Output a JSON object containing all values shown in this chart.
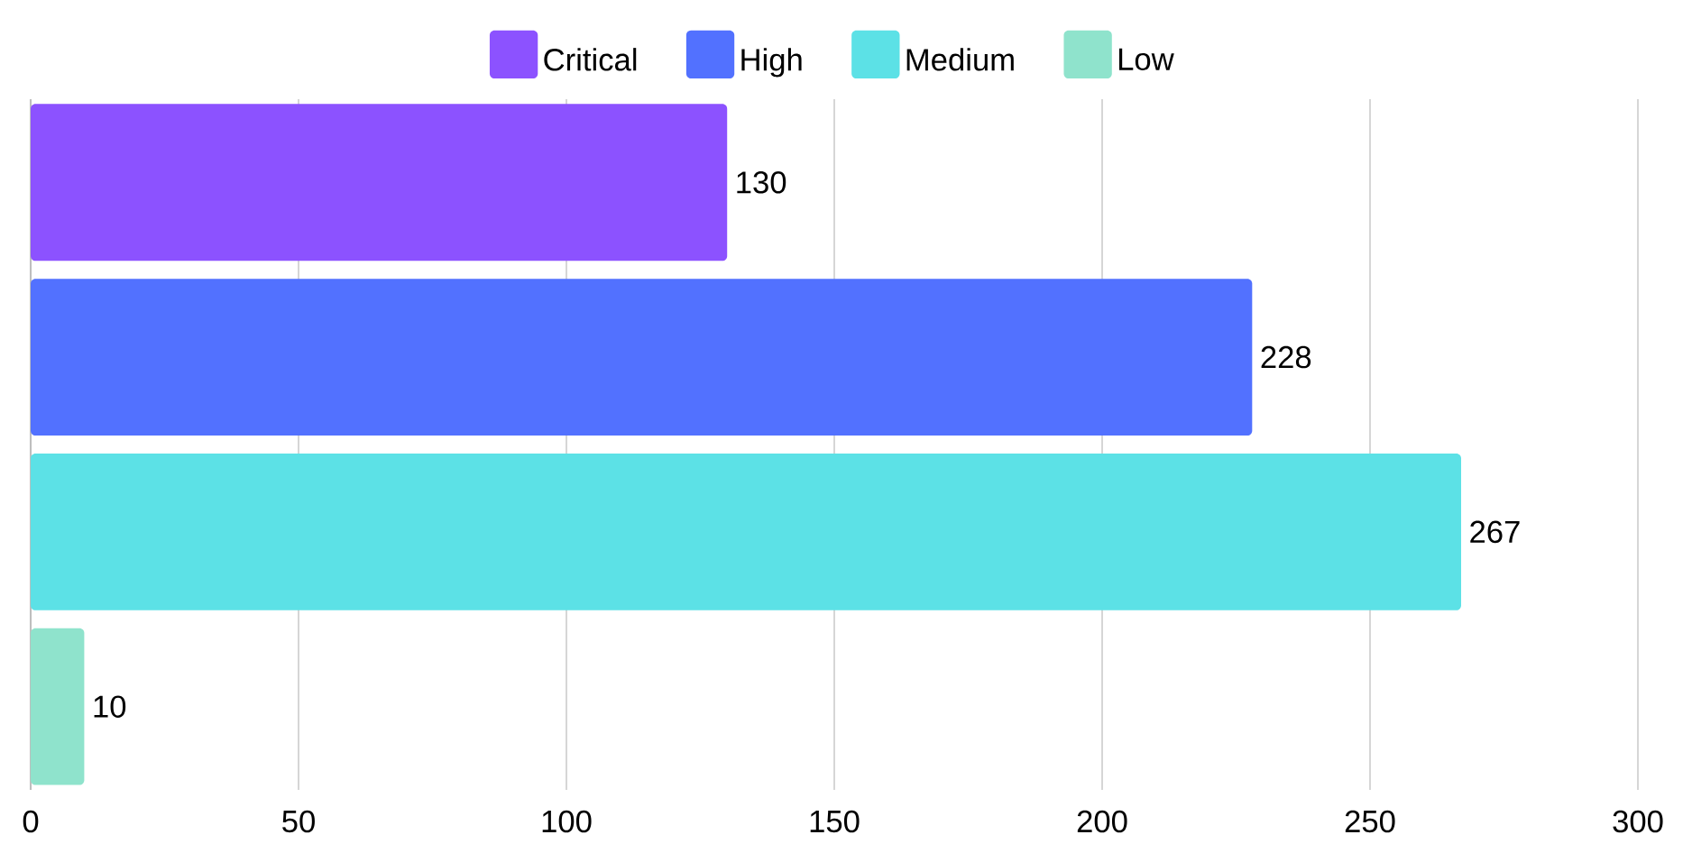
{
  "chart_data": {
    "type": "bar",
    "orientation": "horizontal",
    "categories": [
      null
    ],
    "series": [
      {
        "name": "Critical",
        "color": "#8c52ff",
        "values": [
          130
        ]
      },
      {
        "name": "High",
        "color": "#5271ff",
        "values": [
          228
        ]
      },
      {
        "name": "Medium",
        "color": "#5ce1e6",
        "values": [
          267
        ]
      },
      {
        "name": "Low",
        "color": "#8fe3cc",
        "values": [
          10
        ]
      }
    ],
    "xlim": [
      0,
      300
    ],
    "xticks": [
      0,
      50,
      100,
      150,
      200,
      250,
      300
    ],
    "grid": "x",
    "legend": "top",
    "data_labels": true
  }
}
